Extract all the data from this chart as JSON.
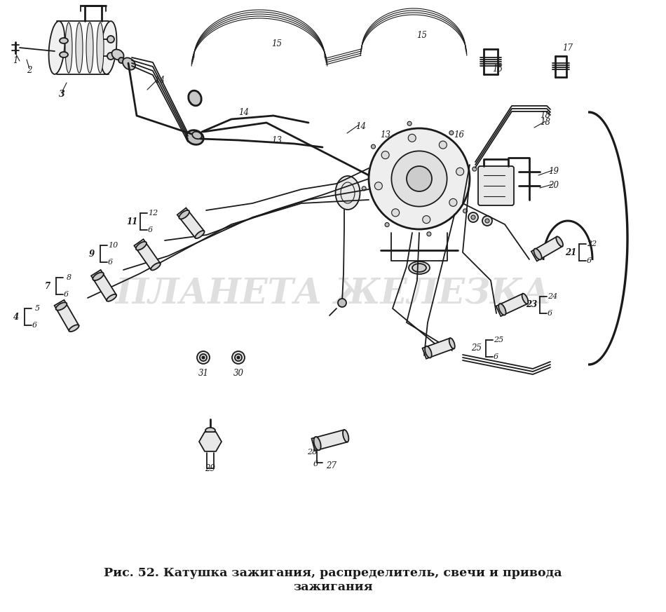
{
  "title_line1": "Рис. 52. Катушка зажигания, распределитель, свечи и привода",
  "title_line2": "зажигания",
  "bg_color": "#ffffff",
  "watermark": "ПЛАНЕТА ЖЕЛЕЗКА",
  "watermark_color": "#c0c0c0",
  "watermark_alpha": 0.5,
  "line_color": "#1a1a1a",
  "title_fontsize": 12.5,
  "watermark_fontsize": 36
}
